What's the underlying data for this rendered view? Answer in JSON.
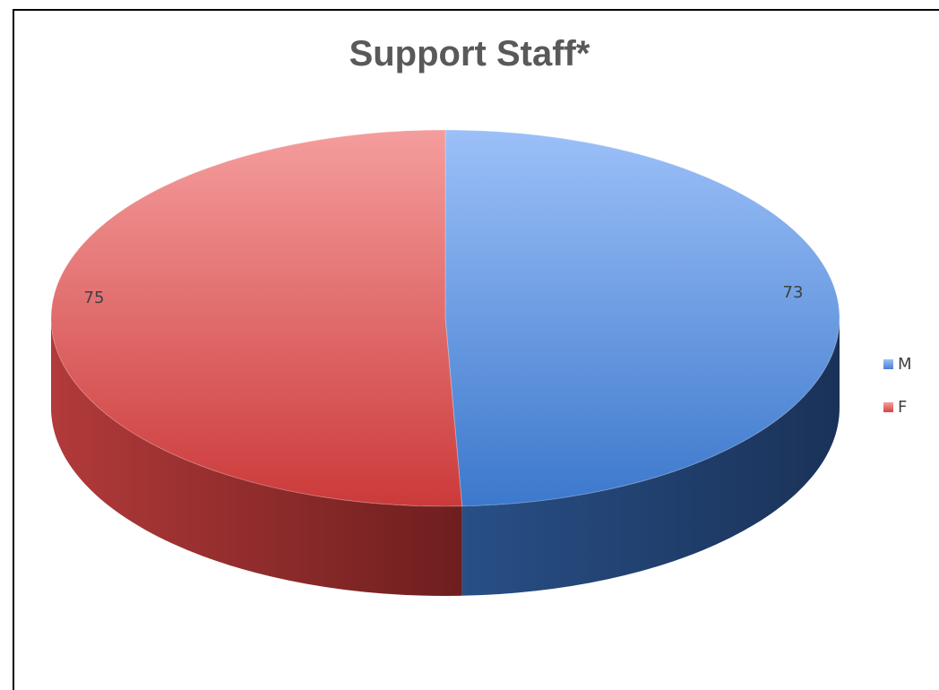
{
  "chart_data": {
    "type": "pie",
    "title": "Support Staff*",
    "categories": [
      "M",
      "F"
    ],
    "values": [
      73,
      75
    ],
    "data_labels": [
      "73",
      "75"
    ],
    "colors": [
      "#4a7fd0",
      "#d44444"
    ],
    "legend_position": "right",
    "style": "3d"
  }
}
